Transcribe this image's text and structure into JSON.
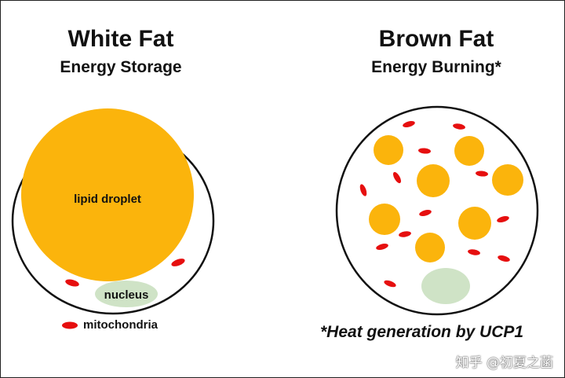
{
  "white_fat": {
    "title": "White Fat",
    "subtitle": "Energy Storage",
    "lipid_label": "lipid droplet",
    "nucleus_label": "nucleus"
  },
  "brown_fat": {
    "title": "Brown Fat",
    "subtitle": "Energy Burning*",
    "footnote": "*Heat generation by UCP1"
  },
  "legend": {
    "mitochondria_label": "mitochondria"
  },
  "watermark": "知乎 @初夏之菡",
  "colors": {
    "lipid": "#fbb40c",
    "mitochondria": "#e60f0f",
    "nucleus": "#cfe3c6",
    "cell_outline": "#111111"
  }
}
